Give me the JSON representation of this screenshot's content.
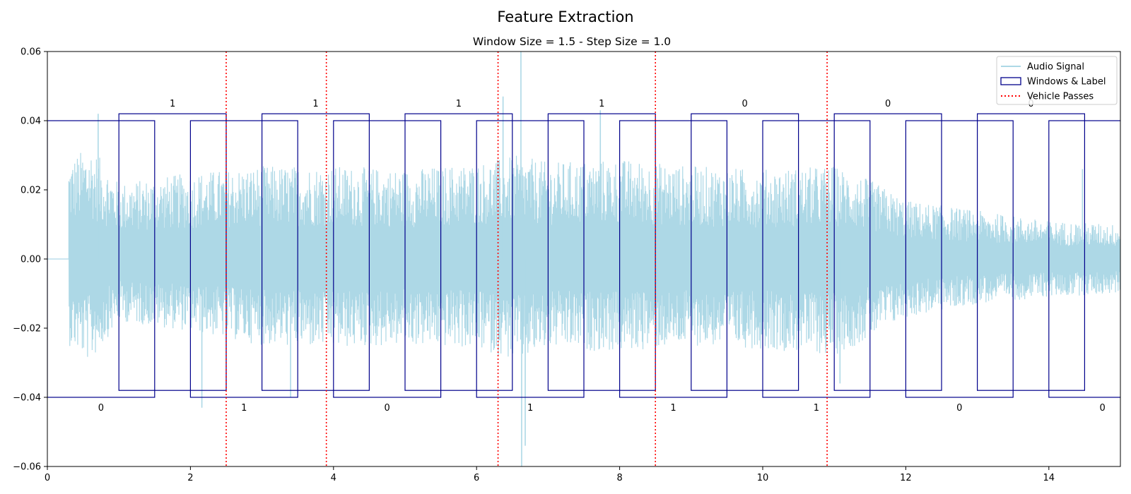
{
  "chart_data": {
    "type": "line",
    "title": "Feature Extraction",
    "subtitle": "Window Size = 1.5 - Step Size = 1.0",
    "xlabel": "",
    "ylabel": "",
    "xlim": [
      0,
      15
    ],
    "ylim": [
      -0.06,
      0.06
    ],
    "xticks": [
      0,
      2,
      4,
      6,
      8,
      10,
      12,
      14
    ],
    "yticks": [
      -0.06,
      -0.04,
      -0.02,
      0.0,
      0.02,
      0.04,
      0.06
    ],
    "xtick_labels": [
      "0",
      "2",
      "4",
      "6",
      "8",
      "10",
      "12",
      "14"
    ],
    "ytick_labels": [
      "−0.06",
      "−0.04",
      "−0.02",
      "0.00",
      "0.02",
      "0.04",
      "0.06"
    ],
    "grid": false,
    "legend_position": "top-right",
    "colors": {
      "signal": "#add8e6",
      "windows": "#00008b",
      "passes": "#ff0000"
    },
    "series": [
      {
        "name": "Audio Signal",
        "kind": "line",
        "signal_start": 0.3,
        "envelope": {
          "t": [
            0.3,
            0.6,
            1.0,
            2.0,
            3.0,
            4.0,
            5.0,
            6.0,
            6.6,
            7.0,
            8.0,
            9.0,
            10.0,
            11.0,
            11.5,
            12.0,
            13.0,
            14.0,
            15.0
          ],
          "max": [
            0.029,
            0.033,
            0.022,
            0.025,
            0.027,
            0.027,
            0.026,
            0.028,
            0.03,
            0.028,
            0.029,
            0.027,
            0.026,
            0.027,
            0.023,
            0.017,
            0.014,
            0.011,
            0.01
          ],
          "min": [
            -0.025,
            -0.03,
            -0.018,
            -0.021,
            -0.025,
            -0.026,
            -0.025,
            -0.026,
            -0.03,
            -0.026,
            -0.027,
            -0.025,
            -0.026,
            -0.028,
            -0.023,
            -0.017,
            -0.013,
            -0.011,
            -0.01
          ]
        },
        "spikes": [
          {
            "t": 0.71,
            "v": 0.042
          },
          {
            "t": 2.16,
            "v": -0.043
          },
          {
            "t": 3.4,
            "v": -0.04
          },
          {
            "t": 6.37,
            "v": 0.047
          },
          {
            "t": 6.62,
            "v": 0.06
          },
          {
            "t": 6.63,
            "v": -0.06
          },
          {
            "t": 6.68,
            "v": -0.054
          },
          {
            "t": 7.73,
            "v": 0.043
          },
          {
            "t": 11.08,
            "v": -0.036
          },
          {
            "t": 14.47,
            "v": 0.026
          }
        ]
      },
      {
        "name": "Windows & Label",
        "kind": "rect",
        "y_high": [
          0.04,
          0.042
        ],
        "y_low": [
          -0.04,
          -0.038
        ],
        "windows": [
          {
            "start": 0.0,
            "end": 1.5,
            "label": "0",
            "row": "low"
          },
          {
            "start": 1.0,
            "end": 2.5,
            "label": "1",
            "row": "high"
          },
          {
            "start": 2.0,
            "end": 3.5,
            "label": "1",
            "row": "low"
          },
          {
            "start": 3.0,
            "end": 4.5,
            "label": "1",
            "row": "high"
          },
          {
            "start": 4.0,
            "end": 5.5,
            "label": "0",
            "row": "low"
          },
          {
            "start": 5.0,
            "end": 6.5,
            "label": "1",
            "row": "high"
          },
          {
            "start": 6.0,
            "end": 7.5,
            "label": "1",
            "row": "low"
          },
          {
            "start": 7.0,
            "end": 8.5,
            "label": "1",
            "row": "high"
          },
          {
            "start": 8.0,
            "end": 9.5,
            "label": "1",
            "row": "low"
          },
          {
            "start": 9.0,
            "end": 10.5,
            "label": "0",
            "row": "high"
          },
          {
            "start": 10.0,
            "end": 11.5,
            "label": "1",
            "row": "low"
          },
          {
            "start": 11.0,
            "end": 12.5,
            "label": "0",
            "row": "high"
          },
          {
            "start": 12.0,
            "end": 13.5,
            "label": "0",
            "row": "low"
          },
          {
            "start": 13.0,
            "end": 14.5,
            "label": "0",
            "row": "high"
          },
          {
            "start": 14.0,
            "end": 15.5,
            "label": "0",
            "row": "low"
          }
        ]
      },
      {
        "name": "Vehicle Passes",
        "kind": "vline",
        "x": [
          2.5,
          3.9,
          6.3,
          8.5,
          10.9
        ]
      }
    ]
  }
}
